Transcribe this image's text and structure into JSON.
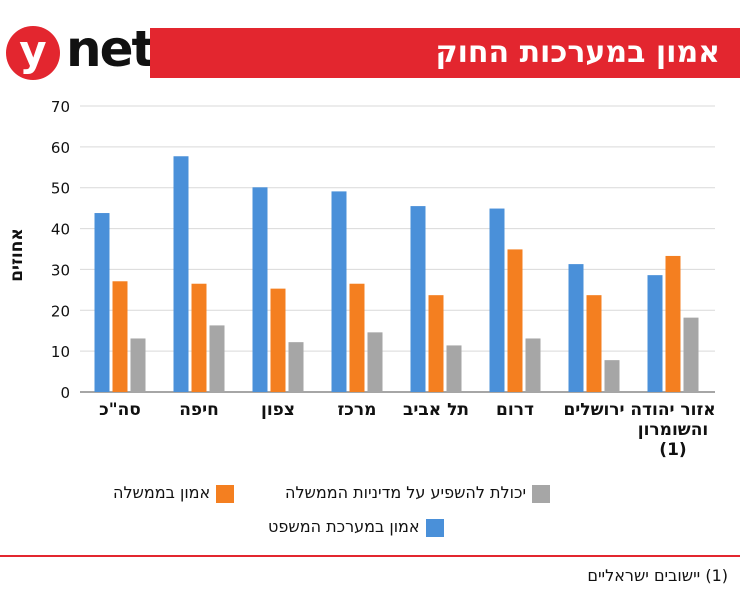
{
  "brand": {
    "logo_y": "y",
    "logo_net": "net"
  },
  "header": {
    "title": "אמון במערכות החוק"
  },
  "colors": {
    "accent": "#e3262f",
    "blue": "#4a90d9",
    "orange": "#f47f20",
    "gray": "#a6a6a6"
  },
  "chart_data": {
    "type": "bar",
    "title": "אמון במערכות החוק",
    "ylabel": "אחוזים",
    "ylim": [
      0,
      70
    ],
    "yticks": [
      0,
      10,
      20,
      30,
      40,
      50,
      60,
      70
    ],
    "grid": true,
    "legend_position": "bottom",
    "categories": [
      "סה\"כ",
      "חיפה",
      "צפון",
      "מרכז",
      "תל אביב",
      "דרום",
      "ירושלים",
      "אזור יהודה והשומרון (1)"
    ],
    "series": [
      {
        "name": "אמון במערכת המשפט",
        "color": "#4a90d9",
        "values": [
          43.8,
          57.7,
          50.1,
          49.1,
          45.5,
          44.9,
          31.3,
          28.6
        ]
      },
      {
        "name": "אמון בממשלה",
        "color": "#f47f20",
        "values": [
          27.1,
          26.5,
          25.3,
          26.5,
          23.7,
          34.9,
          23.7,
          33.3
        ]
      },
      {
        "name": "יכולת להשפיע על מדיניות הממשלה",
        "color": "#a6a6a6",
        "values": [
          13.1,
          16.3,
          12.2,
          14.6,
          11.4,
          13.1,
          7.8,
          18.2
        ]
      }
    ]
  },
  "footnote": "(1) יישובים ישראליים"
}
